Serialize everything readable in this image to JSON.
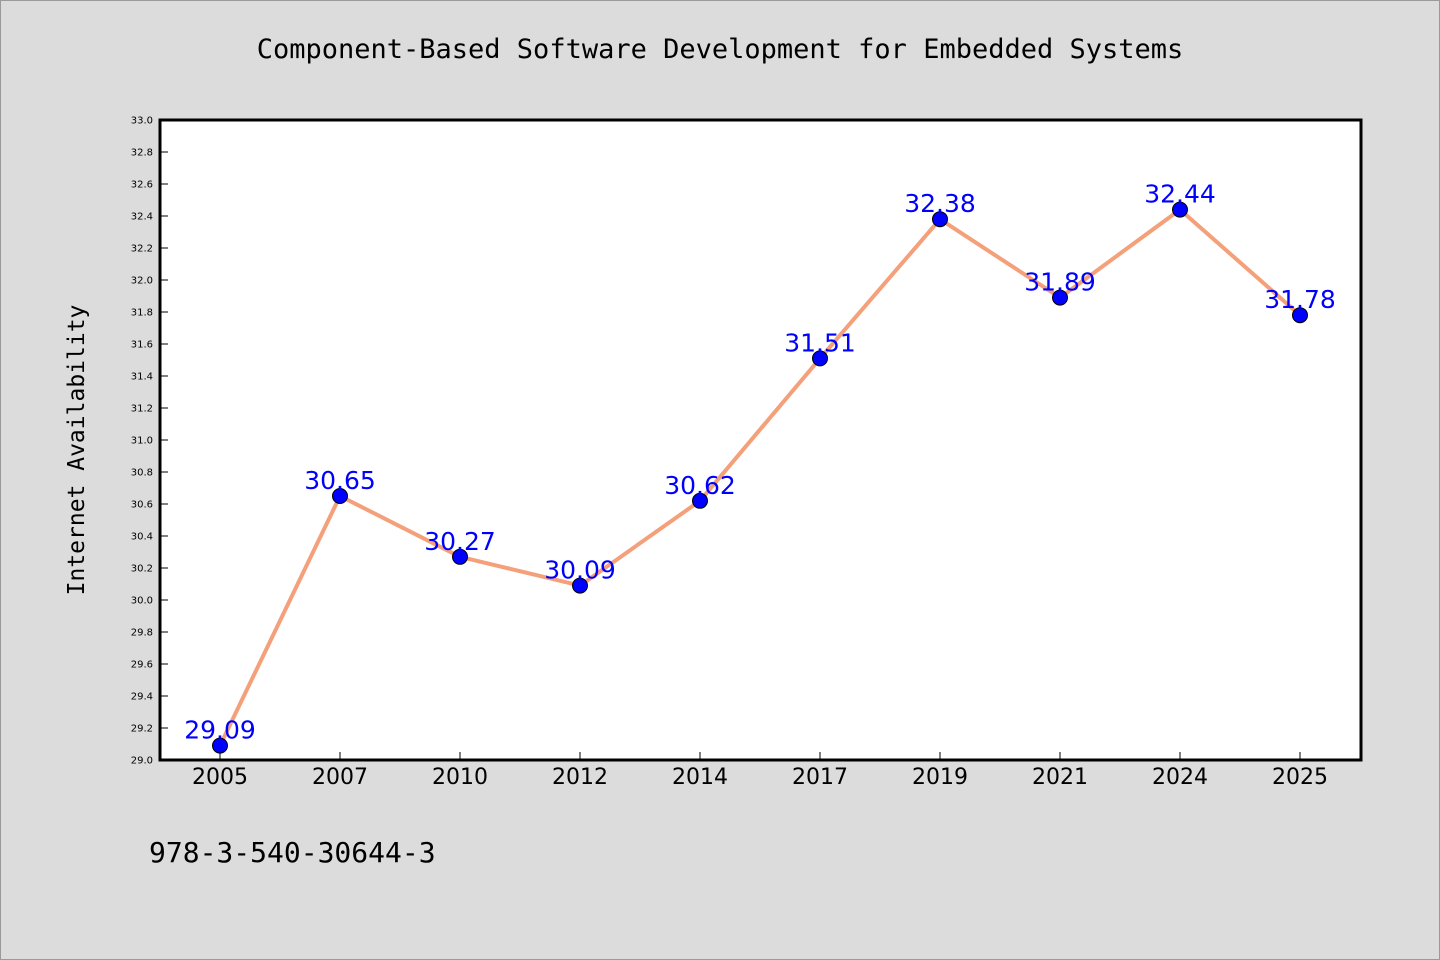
{
  "chart_data": {
    "type": "line",
    "title": "Component-Based Software Development for Embedded Systems",
    "xlabel": "",
    "ylabel": "Internet Availability",
    "categories": [
      "2005",
      "2007",
      "2010",
      "2012",
      "2014",
      "2017",
      "2019",
      "2021",
      "2024",
      "2025"
    ],
    "series": [
      {
        "values": [
          29.09,
          30.65,
          30.27,
          30.09,
          30.62,
          31.51,
          32.38,
          31.89,
          32.44,
          31.78
        ],
        "labels": [
          "29.09",
          "30.65",
          "30.27",
          "30.09",
          "30.62",
          "31.51",
          "32.38",
          "31.89",
          "32.44",
          "31.78"
        ]
      }
    ],
    "ylim": [
      29.0,
      33.0
    ],
    "yticks": [
      "29.0",
      "29.2",
      "29.4",
      "29.6",
      "29.8",
      "30.0",
      "30.2",
      "30.4",
      "30.6",
      "30.8",
      "31.0",
      "31.2",
      "31.4",
      "31.6",
      "31.8",
      "32.0",
      "32.2",
      "32.4",
      "32.6",
      "32.8",
      "33.0"
    ],
    "grid": false,
    "legend": "none",
    "colors": {
      "line": "#f4a07a",
      "marker": "#0000ff",
      "data_label": "#0000ff",
      "background": "#dcdcdc",
      "plot_area": "#ffffff"
    }
  },
  "footer": {
    "isbn": "978-3-540-30644-3"
  }
}
